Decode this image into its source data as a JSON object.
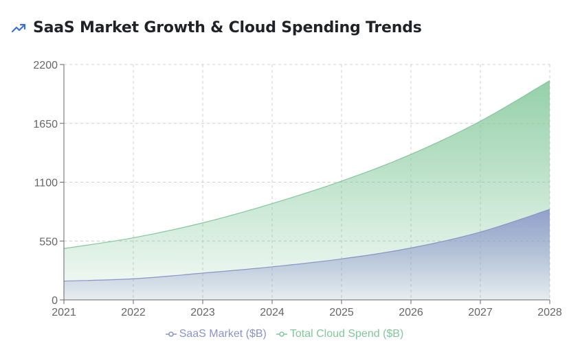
{
  "header": {
    "title": "SaaS Market Growth & Cloud Spending Trends",
    "icon": "trending-up-icon",
    "icon_color": "#3b6fd8"
  },
  "colors": {
    "saas": "#8893c9",
    "cloud": "#82c79a",
    "grid": "#cccccc",
    "axis": "#666666"
  },
  "chart_data": {
    "type": "area",
    "x": [
      "2021",
      "2022",
      "2023",
      "2024",
      "2025",
      "2026",
      "2027",
      "2028"
    ],
    "ylim": [
      0,
      2200
    ],
    "yticks": [
      "0",
      "550",
      "1100",
      "1650",
      "2200"
    ],
    "grid": true,
    "legend_position": "bottom-center",
    "series": [
      {
        "name": "SaaS Market ($B)",
        "values": [
          176,
          197,
          250,
          309,
          383,
          485,
          634,
          846
        ]
      },
      {
        "name": "Total Cloud Spend ($B)",
        "values": [
          480,
          580,
          720,
          900,
          1110,
          1360,
          1670,
          2050
        ]
      }
    ]
  }
}
